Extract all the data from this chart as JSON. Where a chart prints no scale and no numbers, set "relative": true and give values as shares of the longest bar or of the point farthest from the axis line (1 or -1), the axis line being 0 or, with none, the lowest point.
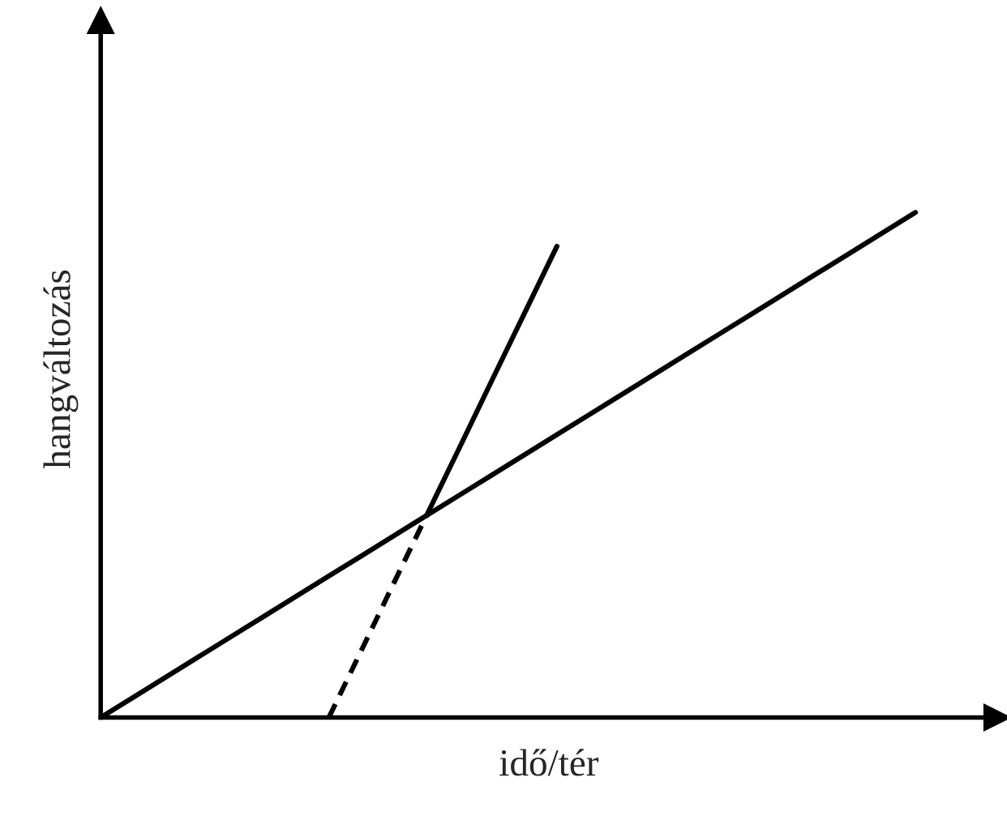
{
  "chart_data": {
    "type": "line",
    "relative": true,
    "xlabel": "idő/tér",
    "ylabel": "hangváltozás",
    "legend": false,
    "tick_labels": false,
    "marker": "none",
    "categories": [
      null,
      null,
      null,
      null,
      null,
      null,
      null,
      null,
      null,
      null,
      null,
      null,
      null,
      null,
      null,
      null,
      null,
      null,
      null,
      null,
      null,
      null,
      null,
      null,
      null,
      null
    ],
    "series": [
      {
        "color": "#000000",
        "line_style": "solid",
        "values": [
          0,
          0.04,
          0.08,
          0.12,
          0.16,
          0.2,
          0.24,
          0.28,
          0.32,
          0.36,
          0.4,
          0.44,
          0.48,
          0.52,
          0.56,
          0.6,
          0.64,
          0.68,
          0.72,
          0.76,
          0.8,
          0.84,
          0.88,
          0.92,
          0.96,
          1
        ]
      },
      {
        "color": "#000000",
        "line_style": "dashed",
        "values": [
          null,
          null,
          null,
          null,
          null,
          null,
          null,
          0,
          0.133,
          0.267,
          0.4,
          null,
          null,
          null,
          null,
          null,
          null,
          null,
          null,
          null,
          null,
          null,
          null,
          null,
          null,
          null
        ]
      },
      {
        "color": "#000000",
        "line_style": "solid",
        "values": [
          null,
          null,
          null,
          null,
          null,
          null,
          null,
          null,
          null,
          null,
          0.4,
          0.533,
          0.667,
          0.8,
          0.933,
          null,
          null,
          null,
          null,
          null,
          null,
          null,
          null,
          null,
          null,
          null
        ]
      }
    ]
  }
}
